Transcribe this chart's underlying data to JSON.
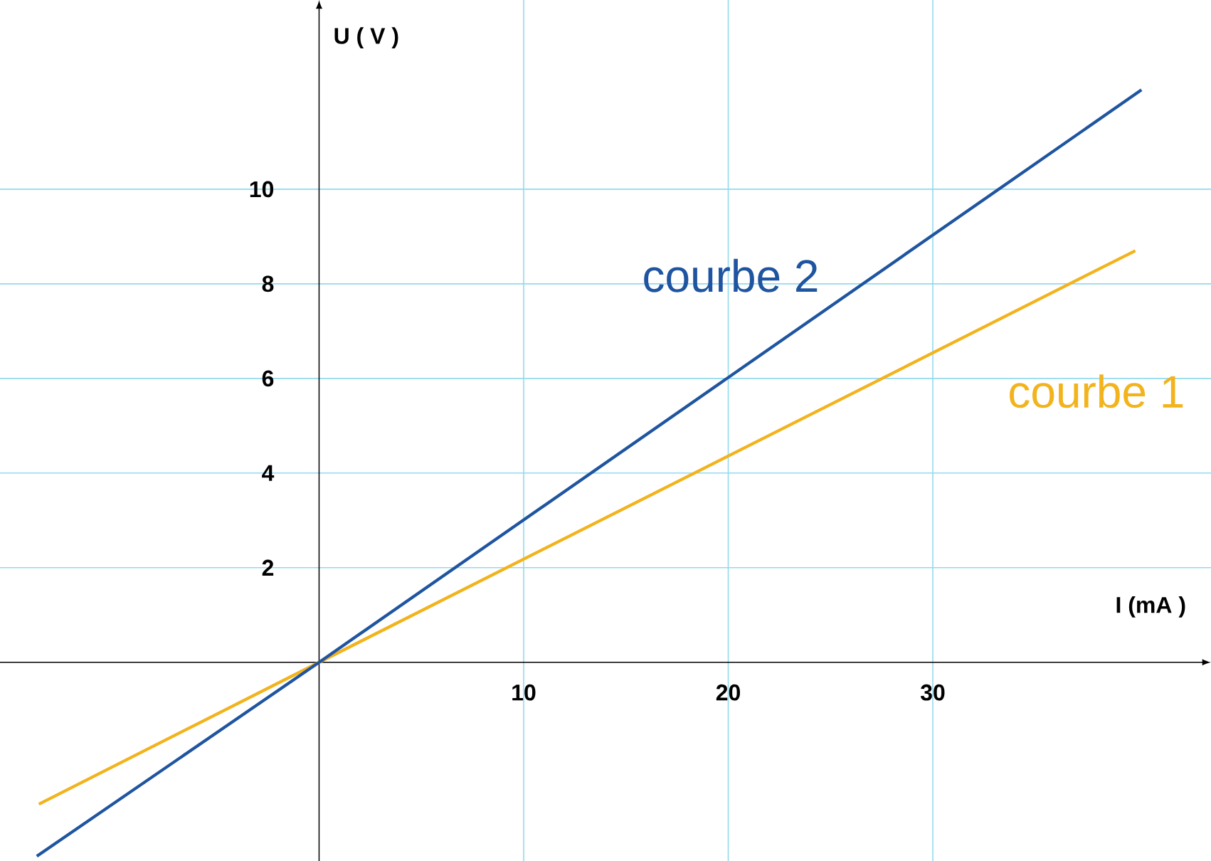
{
  "chart_data": {
    "type": "line",
    "xlabel": "I (mA )",
    "ylabel": "U ( V )",
    "xlim": [
      -15.6,
      43.6
    ],
    "ylim": [
      -4.2,
      14
    ],
    "xticks": [
      10,
      20,
      30
    ],
    "yticks": [
      2,
      4,
      6,
      8,
      10
    ],
    "grid": true,
    "series": [
      {
        "name": "courbe 1",
        "color": "#f2b31c",
        "x": [
          -13.7,
          0,
          39.9
        ],
        "values": [
          -3.0,
          0,
          8.7
        ]
      },
      {
        "name": "courbe 2",
        "color": "#1f55a0",
        "x": [
          -13.8,
          0,
          40.2
        ],
        "values": [
          -4.1,
          0,
          12.1
        ]
      }
    ]
  }
}
